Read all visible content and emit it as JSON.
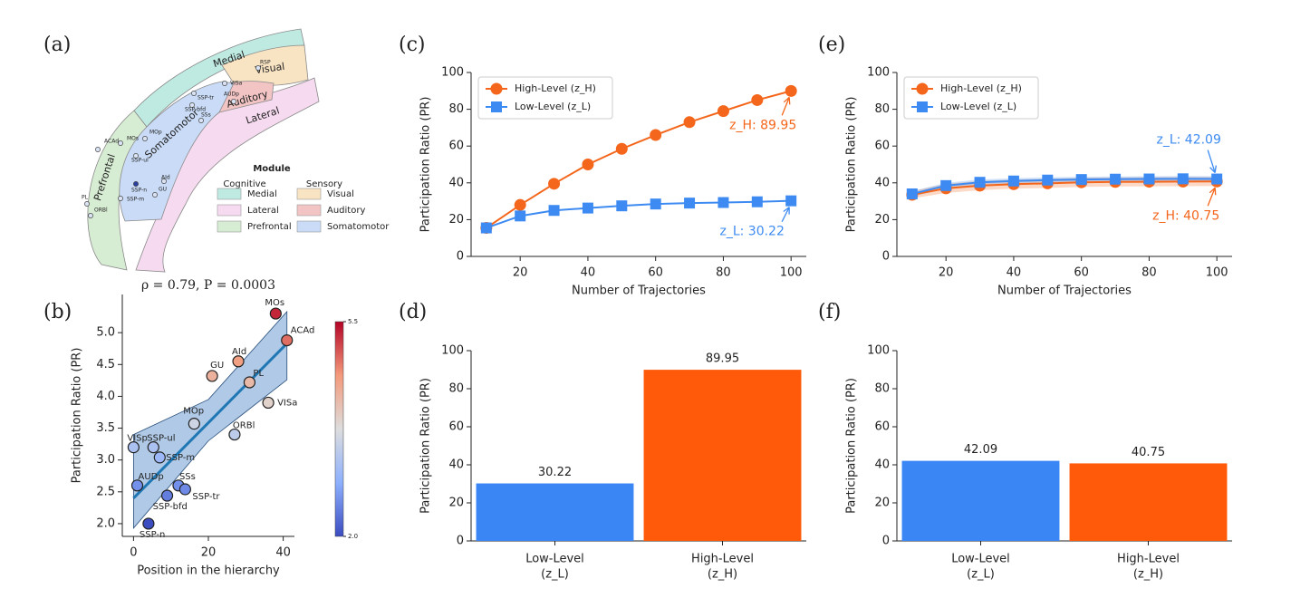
{
  "diagram": {
    "panel": "(a)",
    "modules": [
      {
        "name": "Medial",
        "color": "#bfeae2"
      },
      {
        "name": "Visual",
        "color": "#f8e3c2"
      },
      {
        "name": "Auditory",
        "color": "#f2c4c4"
      },
      {
        "name": "Lateral",
        "color": "#f6daef"
      },
      {
        "name": "Somatomotor",
        "color": "#c9dbf6"
      },
      {
        "name": "Prefrontal",
        "color": "#d7edd3"
      }
    ],
    "regions": [
      "RSP",
      "VISa",
      "AUDp",
      "SSP-tr",
      "SSP-bfd",
      "SSs",
      "MOp",
      "MOs",
      "ACAd",
      "SSP-ul",
      "SSP-n",
      "SSP-m",
      "PL",
      "ORBl",
      "GU",
      "AId"
    ],
    "legend": {
      "title": "Module",
      "groups": [
        {
          "name": "Cognitive",
          "items": [
            "Medial",
            "Lateral",
            "Prefrontal"
          ]
        },
        {
          "name": "Sensory",
          "items": [
            "Visual",
            "Auditory",
            "Somatomotor"
          ]
        }
      ]
    }
  },
  "chart_data": [
    {
      "type": "scatter",
      "panel": "(b)",
      "title": "ρ = 0.79,  P = 0.0003",
      "xlabel": "Position in the hierarchy",
      "ylabel": "Participation Ratio (PR)",
      "labels": [
        "VISp",
        "SSP-ul",
        "SSP-m",
        "MOp",
        "ORBl",
        "VISa",
        "PL",
        "AId",
        "GU",
        "MOs",
        "ACAd",
        "AUDp",
        "SSs",
        "SSP-tr",
        "SSP-bfd",
        "SSP-n"
      ],
      "x": [
        0,
        5.3,
        7,
        16.2,
        27,
        36,
        31,
        28,
        21,
        38,
        41,
        1,
        12,
        13.8,
        9,
        4
      ],
      "y": [
        3.2,
        3.2,
        3.04,
        3.57,
        3.4,
        3.9,
        4.22,
        4.55,
        4.32,
        5.3,
        4.88,
        2.6,
        2.6,
        2.54,
        2.44,
        2.0
      ],
      "fit": {
        "x": [
          0,
          41
        ],
        "y": [
          2.4,
          4.83
        ],
        "color": "#1f77b4"
      },
      "ci": {
        "x": [
          0,
          20,
          41
        ],
        "lower": [
          1.93,
          3.3,
          4.26
        ],
        "upper": [
          3.4,
          3.95,
          5.33
        ],
        "color": "#9bbbe0"
      },
      "colormap": [
        "#3b4cc0",
        "#8db0fe",
        "#dddddd",
        "#f49a7b",
        "#b40426"
      ],
      "clim": [
        2,
        5.5
      ],
      "cticks": [
        5.5,
        {
          "value": 2,
          "label": "2.0"
        }
      ],
      "xlim": [
        -3,
        43
      ],
      "xticks": [
        0,
        20,
        40
      ],
      "ylim": [
        1.8,
        5.6
      ],
      "yticks": [
        {
          "value": 2,
          "label": "2.0"
        },
        2.5,
        {
          "value": 3,
          "label": "3.0"
        },
        3.5,
        {
          "value": 4,
          "label": "4.0"
        },
        4.5,
        {
          "value": 5,
          "label": "5.0"
        }
      ]
    },
    {
      "type": "line",
      "panel": "(c)",
      "xlabel": "Number of Trajectories",
      "ylabel": "Participation Ratio (PR)",
      "legend": "upper left",
      "x": [
        10,
        20,
        30,
        40,
        50,
        60,
        70,
        80,
        90,
        100
      ],
      "series": [
        {
          "name": "High-Level (z_H)",
          "color": "#f4661b",
          "marker": "o",
          "values": [
            15.5,
            28,
            39.5,
            50,
            58.5,
            66,
            73,
            79,
            85,
            89.95
          ],
          "annotation": "z_H: 89.95"
        },
        {
          "name": "Low-Level (z_L)",
          "color": "#3d8bf2",
          "marker": "s",
          "values": [
            15.5,
            22,
            25,
            26.3,
            27.5,
            28.5,
            29,
            29.3,
            29.7,
            30.22
          ],
          "annotation": "z_L: 30.22"
        }
      ],
      "xlim": [
        5.5,
        104.5
      ],
      "xticks": [
        20,
        40,
        60,
        80,
        100
      ],
      "ylim": [
        0,
        100
      ],
      "yticks": [
        0,
        20,
        40,
        60,
        80,
        100
      ]
    },
    {
      "type": "bar",
      "panel": "(d)",
      "ylabel": "Participation Ratio (PR)",
      "categories": [
        [
          "Low-Level",
          "(z_L)"
        ],
        [
          "High-Level",
          "(z_H)"
        ]
      ],
      "values": [
        30.22,
        89.95
      ],
      "colors": [
        "#3a86f5",
        "#ff5a0a"
      ],
      "ylim": [
        0,
        100
      ],
      "yticks": [
        0,
        20,
        40,
        60,
        80,
        100
      ]
    },
    {
      "type": "line",
      "panel": "(e)",
      "xlabel": "Number of Trajectories",
      "ylabel": "Participation Ratio (PR)",
      "legend": "upper left",
      "x": [
        10,
        20,
        30,
        40,
        50,
        60,
        70,
        80,
        90,
        100
      ],
      "series": [
        {
          "name": "High-Level (z_H)",
          "color": "#f4661b",
          "marker": "o",
          "values": [
            33.5,
            37,
            38.5,
            39.3,
            39.7,
            40.3,
            40.5,
            40.6,
            40.7,
            40.75
          ],
          "lower": [
            31.5,
            34.5,
            36,
            36.8,
            37.2,
            37.8,
            38,
            38.1,
            38.2,
            38.25
          ],
          "upper": [
            35.5,
            39.5,
            41,
            41.8,
            42.2,
            42.8,
            43,
            43.1,
            43.2,
            43.25
          ],
          "annotation": "z_H: 40.75"
        },
        {
          "name": "Low-Level (z_L)",
          "color": "#3d8bf2",
          "marker": "s",
          "values": [
            34,
            38.5,
            40.3,
            41,
            41.5,
            41.8,
            42,
            42.1,
            42.2,
            42.09
          ],
          "lower": [
            32.5,
            37,
            38.8,
            39.5,
            40,
            40.3,
            40.5,
            40.6,
            40.7,
            40.59
          ],
          "upper": [
            35.5,
            40,
            41.8,
            42.5,
            43,
            43.3,
            43.5,
            43.6,
            43.7,
            43.59
          ],
          "annotation": "z_L: 42.09"
        }
      ],
      "xlim": [
        5.5,
        104.5
      ],
      "xticks": [
        20,
        40,
        60,
        80,
        100
      ],
      "ylim": [
        0,
        100
      ],
      "yticks": [
        0,
        20,
        40,
        60,
        80,
        100
      ]
    },
    {
      "type": "bar",
      "panel": "(f)",
      "ylabel": "Participation Ratio (PR)",
      "categories": [
        [
          "Low-Level",
          "(z_L)"
        ],
        [
          "High-Level",
          "(z_H)"
        ]
      ],
      "values": [
        42.09,
        40.75
      ],
      "colors": [
        "#3a86f5",
        "#ff5a0a"
      ],
      "ylim": [
        0,
        100
      ],
      "yticks": [
        0,
        20,
        40,
        60,
        80,
        100
      ]
    }
  ]
}
